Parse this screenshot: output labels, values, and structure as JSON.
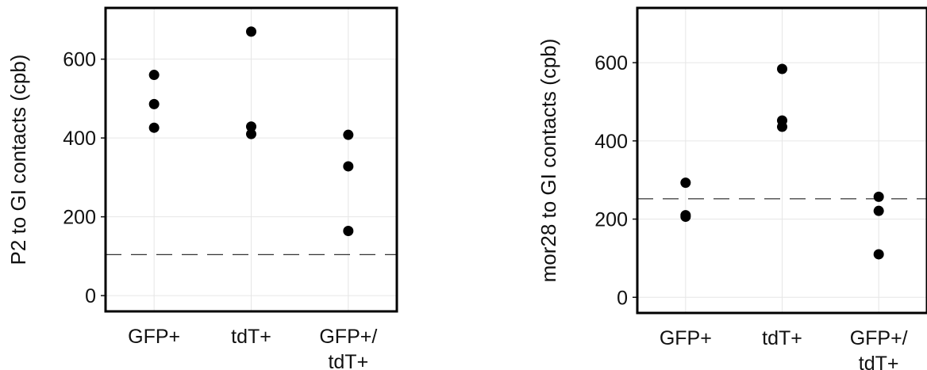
{
  "chart_data": [
    {
      "type": "scatter",
      "title": "",
      "xlabel": "",
      "ylabel": "P2 to GI contacts (cpb)",
      "categories": [
        [
          "GFP+"
        ],
        [
          "tdT+"
        ],
        [
          "GFP+/",
          "tdT+"
        ]
      ],
      "yticks": [
        "0",
        "200",
        "400",
        "600"
      ],
      "ylim": [
        -40,
        730
      ],
      "grid": true,
      "points": [
        {
          "category": 0,
          "y": 560
        },
        {
          "category": 0,
          "y": 486
        },
        {
          "category": 0,
          "y": 426
        },
        {
          "category": 1,
          "y": 670
        },
        {
          "category": 1,
          "y": 429
        },
        {
          "category": 1,
          "y": 410
        },
        {
          "category": 2,
          "y": 408
        },
        {
          "category": 2,
          "y": 328
        },
        {
          "category": 2,
          "y": 164
        }
      ],
      "reference_line": {
        "y": 104,
        "style": "dashed"
      }
    },
    {
      "type": "scatter",
      "title": "",
      "xlabel": "",
      "ylabel": "mor28 to GI contacts (cpb)",
      "categories": [
        [
          "GFP+"
        ],
        [
          "tdT+"
        ],
        [
          "GFP+/",
          "tdT+"
        ]
      ],
      "yticks": [
        "0",
        "200",
        "400",
        "600"
      ],
      "ylim": [
        -40,
        740
      ],
      "grid": true,
      "points": [
        {
          "category": 0,
          "y": 293
        },
        {
          "category": 0,
          "y": 210
        },
        {
          "category": 0,
          "y": 206
        },
        {
          "category": 1,
          "y": 584
        },
        {
          "category": 1,
          "y": 452
        },
        {
          "category": 1,
          "y": 436
        },
        {
          "category": 2,
          "y": 257
        },
        {
          "category": 2,
          "y": 221
        },
        {
          "category": 2,
          "y": 110
        }
      ],
      "reference_line": {
        "y": 252,
        "style": "dashed"
      }
    }
  ]
}
